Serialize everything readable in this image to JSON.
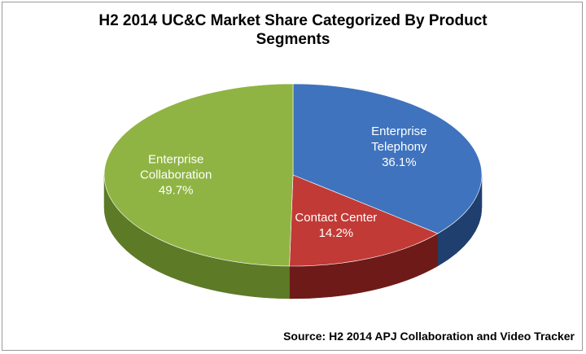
{
  "chart_data": {
    "type": "pie",
    "title_line1": "H2 2014 UC&C Market Share Categorized By Product",
    "title_line2": "Segments",
    "slices": [
      {
        "name_line1": "Enterprise",
        "name_line2": "Telephony",
        "value": 36.1,
        "value_label": "36.1%",
        "color": "#3f73be",
        "side_color": "#1f3f6e"
      },
      {
        "name_line1": "Contact Center",
        "name_line2": "",
        "value": 14.2,
        "value_label": "14.2%",
        "color": "#c13a36",
        "side_color": "#6e1a18"
      },
      {
        "name_line1": "Enterprise",
        "name_line2": "Collaboration",
        "value": 49.7,
        "value_label": "49.7%",
        "color": "#8fb443",
        "side_color": "#5d7a27"
      }
    ],
    "source": "Source: H2 2014 APJ Collaboration and Video Tracker"
  }
}
